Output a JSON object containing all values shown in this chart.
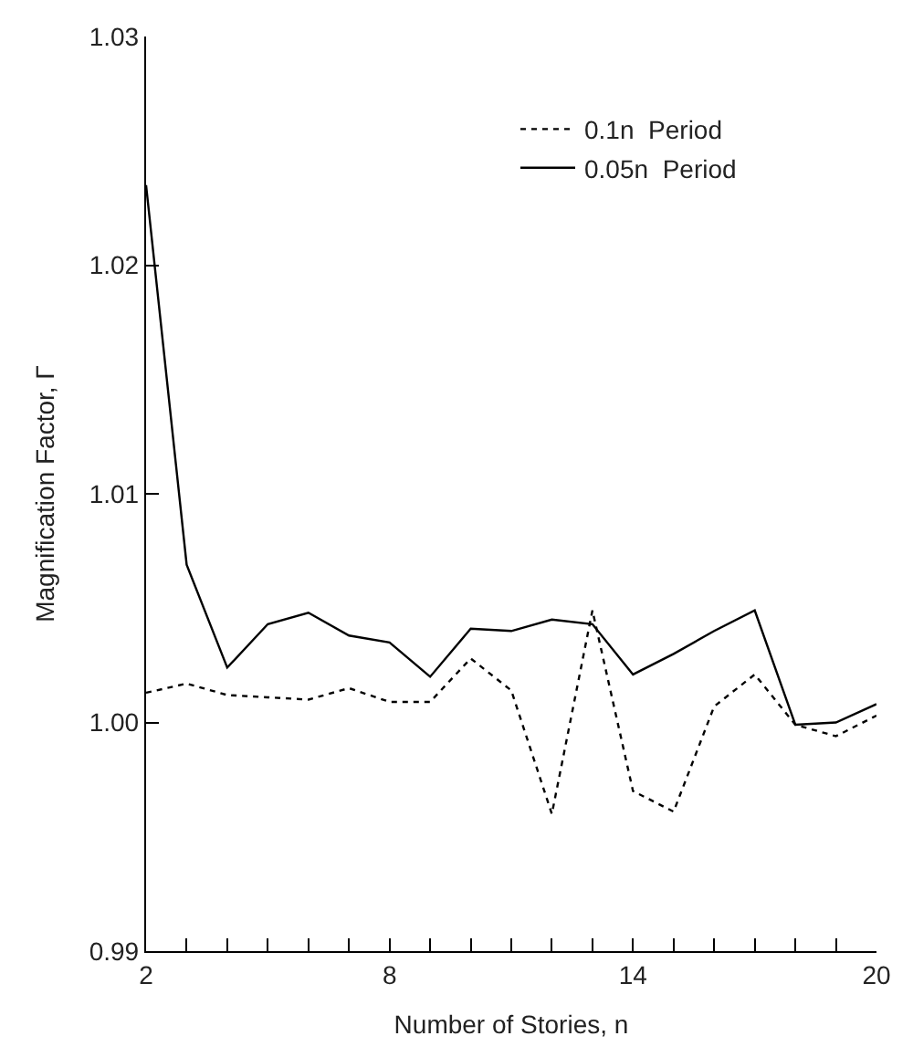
{
  "chart_data": {
    "type": "line",
    "xlabel": "Number of Stories, n",
    "ylabel": "Magnification Factor, Γ",
    "x": [
      2,
      3,
      4,
      5,
      6,
      7,
      8,
      9,
      10,
      11,
      12,
      13,
      14,
      15,
      16,
      17,
      18,
      19,
      20
    ],
    "series": [
      {
        "name": "0.1n  Period",
        "color": "#000000",
        "line_style": "dotted",
        "values": [
          1.0013,
          1.0017,
          1.0012,
          1.0011,
          1.001,
          1.0015,
          1.0009,
          1.0009,
          1.0028,
          1.0014,
          0.996,
          1.0049,
          0.997,
          0.9961,
          1.0007,
          1.0021,
          0.9999,
          0.9994,
          1.0003
        ]
      },
      {
        "name": "0.05n  Period",
        "color": "#000000",
        "line_style": "solid",
        "values": [
          1.0235,
          1.0069,
          1.0024,
          1.0043,
          1.0048,
          1.0038,
          1.0035,
          1.002,
          1.0041,
          1.004,
          1.0045,
          1.0043,
          1.0021,
          1.003,
          1.004,
          1.0049,
          0.9999,
          1.0,
          1.0008
        ]
      }
    ],
    "xlim": [
      2,
      20
    ],
    "xticks": [
      2,
      {
        "value": 3,
        "label": null
      },
      {
        "value": 4,
        "label": null
      },
      {
        "value": 5,
        "label": null
      },
      {
        "value": 6,
        "label": null
      },
      {
        "value": 7,
        "label": null
      },
      8,
      {
        "value": 9,
        "label": null
      },
      {
        "value": 10,
        "label": null
      },
      {
        "value": 11,
        "label": null
      },
      {
        "value": 12,
        "label": null
      },
      {
        "value": 13,
        "label": null
      },
      14,
      {
        "value": 15,
        "label": null
      },
      {
        "value": 16,
        "label": null
      },
      {
        "value": 17,
        "label": null
      },
      {
        "value": 18,
        "label": null
      },
      {
        "value": 19,
        "label": null
      },
      20
    ],
    "ylim": [
      0.99,
      1.03
    ],
    "yticks": [
      {
        "value": 0.99,
        "label": "0.99"
      },
      {
        "value": 1.0,
        "label": "1.00"
      },
      {
        "value": 1.01,
        "label": "1.01"
      },
      {
        "value": 1.02,
        "label": "1.02"
      },
      {
        "value": 1.03,
        "label": "1.03"
      }
    ],
    "legend": "top right",
    "marker": "none"
  }
}
